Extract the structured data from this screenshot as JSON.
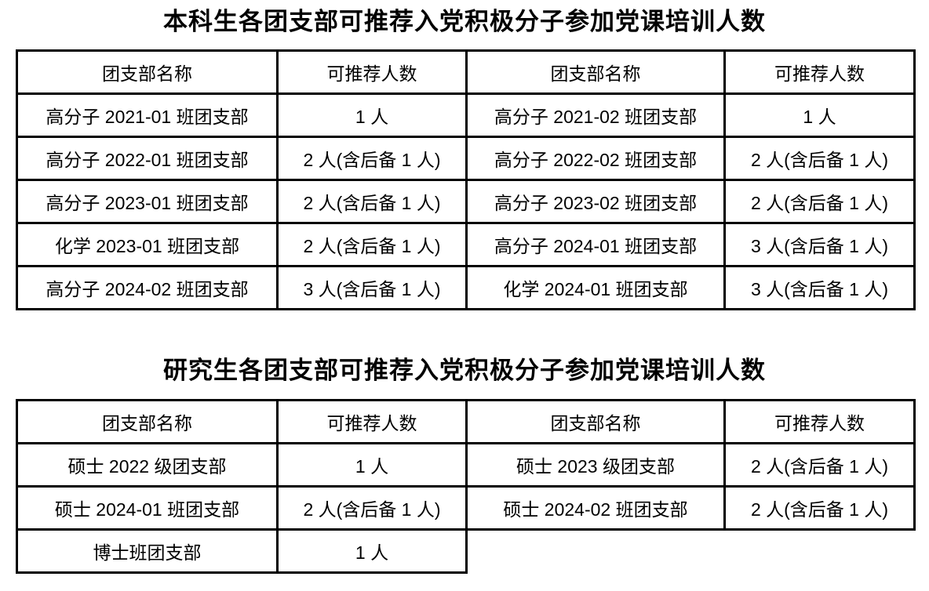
{
  "page": {
    "background_color": "#ffffff",
    "text_color": "#000000",
    "border_color": "#000000"
  },
  "tables": [
    {
      "id": "undergraduate",
      "title": "本科生各团支部可推荐入党积极分子参加党课培训人数",
      "headers": [
        "团支部名称",
        "可推荐人数",
        "团支部名称",
        "可推荐人数"
      ],
      "rows": [
        [
          "高分子 2021-01 班团支部",
          "1 人",
          "高分子 2021-02 班团支部",
          "1 人"
        ],
        [
          "高分子 2022-01 班团支部",
          "2 人(含后备 1 人)",
          "高分子 2022-02 班团支部",
          "2 人(含后备 1 人)"
        ],
        [
          "高分子 2023-01 班团支部",
          "2 人(含后备 1 人)",
          "高分子 2023-02 班团支部",
          "2 人(含后备 1 人)"
        ],
        [
          "化学 2023-01 班团支部",
          "2 人(含后备 1 人)",
          "高分子 2024-01 班团支部",
          "3 人(含后备 1 人)"
        ],
        [
          "高分子 2024-02 班团支部",
          "3 人(含后备 1 人)",
          "化学 2024-01 班团支部",
          "3 人(含后备 1 人)"
        ]
      ]
    },
    {
      "id": "graduate",
      "title": "研究生各团支部可推荐入党积极分子参加党课培训人数",
      "headers": [
        "团支部名称",
        "可推荐人数",
        "团支部名称",
        "可推荐人数"
      ],
      "rows": [
        [
          "硕士 2022 级团支部",
          "1 人",
          "硕士 2023 级团支部",
          "2 人(含后备 1 人)"
        ],
        [
          "硕士 2024-01 班团支部",
          "2 人(含后备 1 人)",
          "硕士 2024-02 班团支部",
          "2 人(含后备 1 人)"
        ],
        [
          "博士班团支部",
          "1 人",
          null,
          null
        ]
      ]
    }
  ]
}
